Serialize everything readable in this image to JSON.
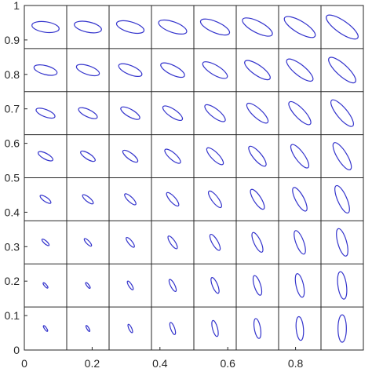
{
  "chart_data": {
    "type": "scatter",
    "title": "",
    "xlabel": "",
    "ylabel": "",
    "xlim": [
      0,
      1
    ],
    "ylim": [
      0,
      1
    ],
    "grid": "8x8 cell grid",
    "x_ticks": [
      "0",
      "0.2",
      "0.4",
      "0.6",
      "0.8"
    ],
    "y_ticks": [
      "0",
      "0.1",
      "0.2",
      "0.3",
      "0.4",
      "0.5",
      "0.6",
      "0.7",
      "0.8",
      "0.9",
      "1"
    ],
    "x_tick_values": [
      0,
      0.2,
      0.4,
      0.6,
      0.8
    ],
    "y_tick_values": [
      0,
      0.1,
      0.2,
      0.3,
      0.4,
      0.5,
      0.6,
      0.7,
      0.8,
      0.9,
      1
    ],
    "grid_divisions": [
      0,
      0.125,
      0.25,
      0.375,
      0.5,
      0.625,
      0.75,
      0.875,
      1
    ],
    "marker": "ellipse",
    "marker_color": "#3333cc",
    "ellipse_centers": {
      "x": [
        0.0625,
        0.1875,
        0.3125,
        0.4375,
        0.5625,
        0.6875,
        0.8125,
        0.9375
      ],
      "y": [
        0.0625,
        0.1875,
        0.3125,
        0.4375,
        0.5625,
        0.6875,
        0.8125,
        0.9375
      ]
    },
    "ellipse_model": {
      "semi_axis_major_max": 0.056,
      "semi_axis_minor_max": 0.019,
      "orientation_bottom_right_deg": 90,
      "orientation_top_left_deg": 8,
      "orientation_top_right_deg": 35,
      "orientation_bottom_left_deg": 55
    }
  }
}
